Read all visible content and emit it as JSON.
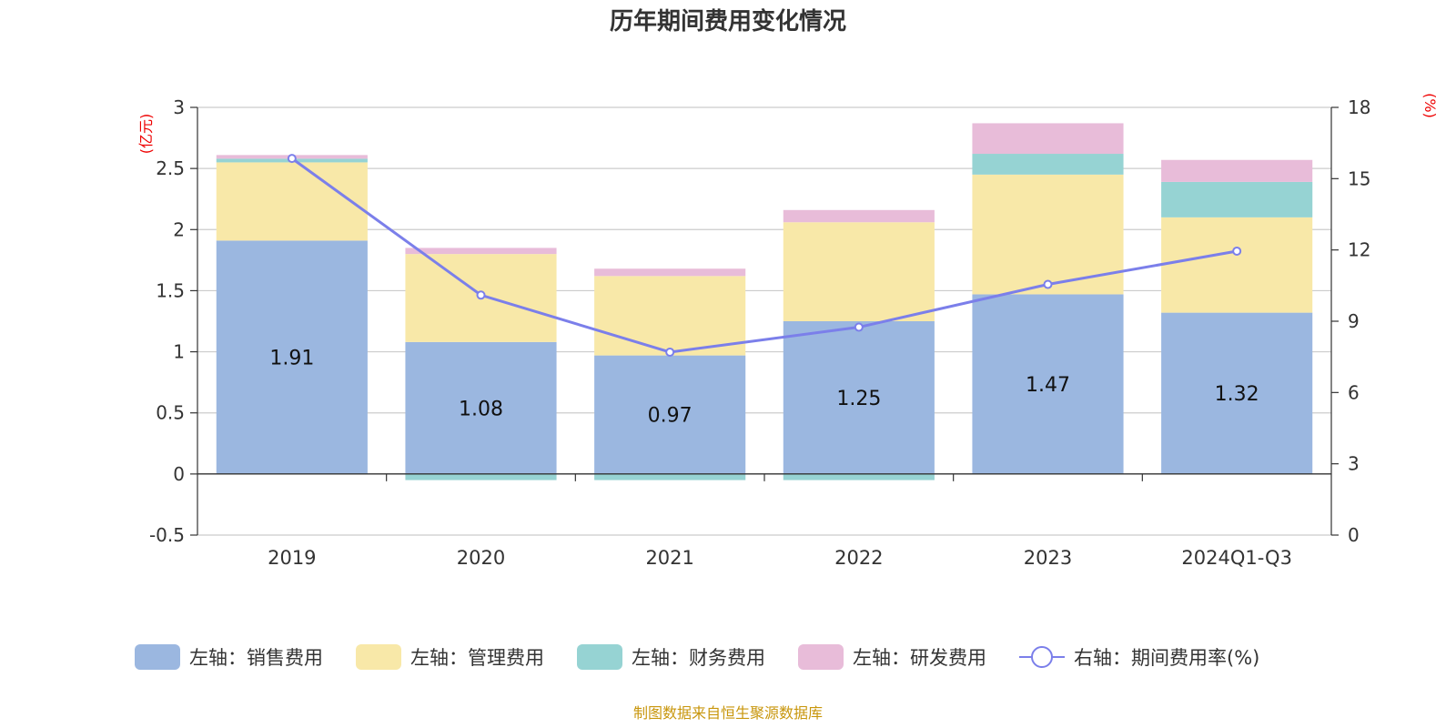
{
  "chart_data": {
    "type": "bar",
    "title": "历年期间费用变化情况",
    "categories": [
      "2019",
      "2020",
      "2021",
      "2022",
      "2023",
      "2024Q1-Q3"
    ],
    "left_axis": {
      "unit": "(亿元)",
      "min": -0.5,
      "max": 3,
      "ticks": [
        "-0.5",
        "0",
        "0.5",
        "1",
        "1.5",
        "2",
        "2.5",
        "3"
      ],
      "tick_values": [
        -0.5,
        0,
        0.5,
        1,
        1.5,
        2,
        2.5,
        3
      ]
    },
    "right_axis": {
      "unit": "(%)",
      "min": 0,
      "max": 18,
      "ticks": [
        "0",
        "3",
        "6",
        "9",
        "12",
        "15",
        "18"
      ],
      "tick_values": [
        0,
        3,
        6,
        9,
        12,
        15,
        18
      ]
    },
    "series": [
      {
        "name": "左轴：销售费用",
        "kind": "bar",
        "color": "#9bb7e0",
        "values": [
          1.91,
          1.08,
          0.97,
          1.25,
          1.47,
          1.32
        ],
        "labels": [
          "1.91",
          "1.08",
          "0.97",
          "1.25",
          "1.47",
          "1.32"
        ]
      },
      {
        "name": "左轴：管理费用",
        "kind": "bar",
        "color": "#f8e8a8",
        "values": [
          0.64,
          0.72,
          0.65,
          0.81,
          0.98,
          0.78
        ]
      },
      {
        "name": "左轴：财务费用",
        "kind": "bar",
        "color": "#96d3d3",
        "values": [
          0.03,
          -0.05,
          -0.05,
          -0.05,
          0.17,
          0.29
        ]
      },
      {
        "name": "左轴：研发费用",
        "kind": "bar",
        "color": "#e8bcd9",
        "values": [
          0.03,
          0.05,
          0.06,
          0.1,
          0.25,
          0.18
        ]
      },
      {
        "name": "右轴：期间费用率(%)",
        "kind": "line",
        "color": "#7b7fea",
        "values": [
          15.85,
          10.1,
          7.7,
          8.75,
          10.55,
          11.95
        ]
      }
    ],
    "legend_position": "bottom-center",
    "grid": true,
    "source": "制图数据来自恒生聚源数据库"
  }
}
